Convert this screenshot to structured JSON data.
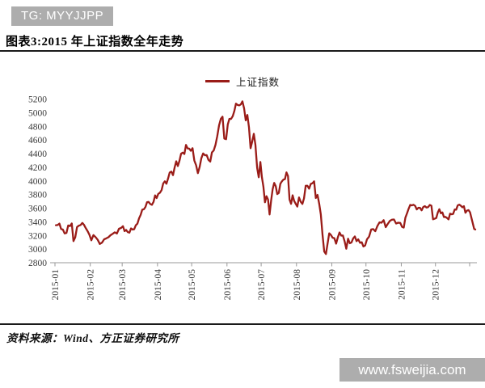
{
  "header": {
    "badge": "TG: MYYJJPP",
    "title": "图表3:2015 年上证指数全年走势"
  },
  "footer": {
    "source": "资料来源：Wind、方正证券研究所",
    "watermark": "www.fsweijia.com"
  },
  "colors": {
    "line": "#9a1c18",
    "badge_bg": "#adadad",
    "rule": "#1a1a1a",
    "axis": "#999999"
  },
  "chart_data": {
    "type": "line",
    "title": "图表3:2015 年上证指数全年走势",
    "legend": [
      "上证指数"
    ],
    "legend_position": "top-center",
    "grid": false,
    "xlabel": "",
    "ylabel": "",
    "ylim": [
      2800,
      5200
    ],
    "y_step": 200,
    "x_tick_labels": [
      "2015-01",
      "2015-02",
      "2015-03",
      "2015-04",
      "2015-05",
      "2015-06",
      "2015-07",
      "2015-08",
      "2015-09",
      "2015-10",
      "2015-11",
      "2015-12"
    ],
    "series": [
      {
        "name": "上证指数",
        "monthly_values": {
          "2015-01": [
            3350,
            3352,
            3374,
            3294,
            3286,
            3229,
            3236,
            3346,
            3337,
            3376,
            3116,
            3173,
            3323,
            3343,
            3352,
            3383,
            3353,
            3305,
            3262,
            3210
          ],
          "2015-02": [
            3128,
            3205,
            3175,
            3136,
            3075,
            3095,
            3142,
            3157,
            3173,
            3203,
            3223,
            3246,
            3228,
            3298,
            3310
          ],
          "2015-03": [
            3336,
            3263,
            3280,
            3248,
            3241,
            3302,
            3286,
            3291,
            3349,
            3372,
            3449,
            3502,
            3577,
            3583,
            3617,
            3688,
            3691,
            3661,
            3649,
            3691,
            3787,
            3748
          ],
          "2015-04": [
            3810,
            3826,
            3864,
            3961,
            3994,
            3958,
            4034,
            4121,
            4136,
            4084,
            4194,
            4287,
            4217,
            4293,
            4398,
            4414,
            4394,
            4527,
            4476,
            4472,
            4441
          ],
          "2015-05": [
            4480,
            4298,
            4229,
            4113,
            4205,
            4333,
            4402,
            4375,
            4378,
            4308,
            4283,
            4418,
            4446,
            4529,
            4657,
            4814,
            4910,
            4941,
            4620,
            4611
          ],
          "2015-06": [
            4828,
            4910,
            4909,
            4947,
            5023,
            5132,
            5114,
            5106,
            5121,
            5166,
            5062,
            4887,
            4967,
            4785,
            4478,
            4576,
            4690,
            4527,
            4192,
            4053,
            4277
          ],
          "2015-07": [
            4054,
            3912,
            3687,
            3776,
            3727,
            3507,
            3709,
            3877,
            3970,
            3924,
            3806,
            3823,
            3957,
            3992,
            4018,
            4026,
            4124,
            4071,
            3726,
            3663,
            3789,
            3706,
            3664
          ],
          "2015-08": [
            3623,
            3757,
            3694,
            3662,
            3744,
            3928,
            3928,
            3886,
            3955,
            3965,
            3994,
            3748,
            3794,
            3664,
            3508,
            3210,
            2965,
            2927,
            3083,
            3232,
            3206
          ],
          "2015-09": [
            3166,
            3160,
            3080,
            3170,
            3243,
            3197,
            3200,
            3115,
            3005,
            3152,
            3086,
            3098,
            3156,
            3185,
            3116,
            3142,
            3092,
            3100,
            3038,
            3053
          ],
          "2015-10": [
            3143,
            3183,
            3287,
            3293,
            3262,
            3338,
            3391,
            3387,
            3425,
            3321,
            3369,
            3413,
            3430,
            3434,
            3375,
            3387,
            3383
          ],
          "2015-11": [
            3325,
            3316,
            3460,
            3523,
            3590,
            3647,
            3640,
            3650,
            3633,
            3581,
            3606,
            3605,
            3568,
            3617,
            3630,
            3610,
            3616,
            3647,
            3635,
            3436,
            3445
          ],
          "2015-12": [
            3456,
            3536,
            3585,
            3525,
            3537,
            3470,
            3472,
            3455,
            3435,
            3520,
            3510,
            3516,
            3580,
            3579,
            3642,
            3651,
            3636,
            3612,
            3628,
            3533,
            3563,
            3572,
            3539
          ]
        },
        "jan2016_spillover_values": [
          3296,
          3287
        ]
      }
    ]
  }
}
